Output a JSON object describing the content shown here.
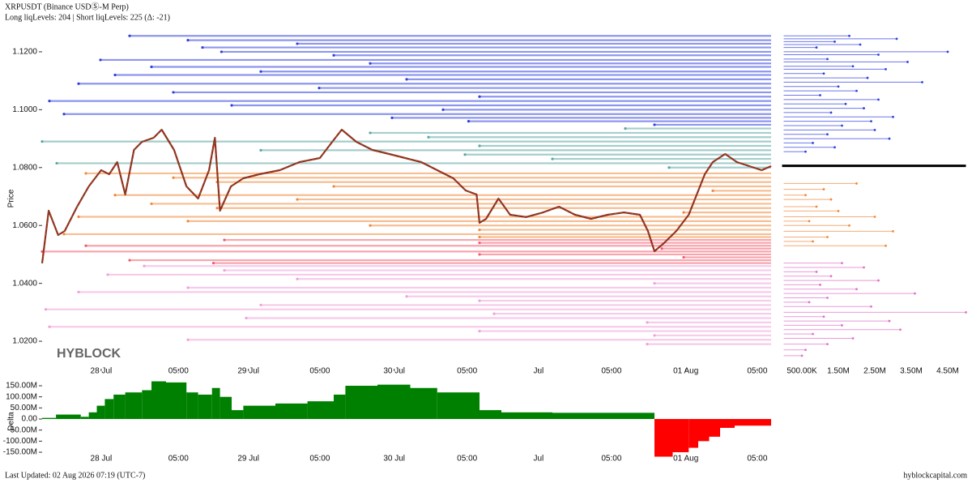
{
  "header": {
    "title": "XRPUSDT (Binance USDⓈ-M Perp)",
    "subtitle": "Long liqLevels: 204 | Short liqLevels: 225 (Δ: -21)"
  },
  "watermark": "HYBLOCK",
  "footer": {
    "updated": "Last Updated: 02 Aug 2026 07:19 (UTC-7)",
    "site": "hyblockcapital.com"
  },
  "chart_data": [
    {
      "type": "line",
      "y_label": "Price",
      "xlim": [
        0,
        100
      ],
      "ylim": [
        1.0105,
        1.1295
      ],
      "xticks": [
        {
          "value": 8.1,
          "label": "28 Jul"
        },
        {
          "value": 18.7,
          "label": "05:00"
        },
        {
          "value": 28.3,
          "label": "29 Jul"
        },
        {
          "value": 38.1,
          "label": "05:00"
        },
        {
          "value": 48.3,
          "label": "30 Jul"
        },
        {
          "value": 58.3,
          "label": "05:00"
        },
        {
          "value": 68.1,
          "label": "Jul"
        },
        {
          "value": 78.1,
          "label": "05:00"
        },
        {
          "value": 88.3,
          "label": "01 Aug"
        },
        {
          "value": 98.1,
          "label": "05:00"
        }
      ],
      "yticks": [
        {
          "value": 1.02,
          "label": "1.0200"
        },
        {
          "value": 1.04,
          "label": "1.0400"
        },
        {
          "value": 1.06,
          "label": "1.0600"
        },
        {
          "value": 1.08,
          "label": "1.0800"
        },
        {
          "value": 1.1,
          "label": "1.1000"
        },
        {
          "value": 1.12,
          "label": "1.1200"
        }
      ],
      "x": [
        0,
        0.9,
        2.2,
        3.1,
        4.8,
        6.4,
        8.1,
        9.2,
        10.3,
        11.4,
        12.6,
        13.7,
        15.3,
        16.4,
        18.1,
        19.8,
        21.4,
        22.9,
        23.7,
        24.4,
        25.9,
        27.6,
        29.8,
        32.6,
        35.3,
        38.1,
        39.8,
        41.1,
        43.1,
        45.3,
        47.6,
        49.8,
        52,
        54.2,
        56.4,
        58.1,
        59.6,
        60,
        60.9,
        62.6,
        64.2,
        66.4,
        68.7,
        70.9,
        73.1,
        75.3,
        77.6,
        79.8,
        82,
        83.1,
        84,
        85.3,
        87,
        88.7,
        89.8,
        90.9,
        92,
        93.7,
        95.3,
        97,
        98.7,
        100
      ],
      "series": [
        {
          "color": "#a0281e",
          "values": [
            1.0469,
            1.0651,
            1.0567,
            1.0581,
            1.0665,
            1.0735,
            1.0791,
            1.0777,
            1.0819,
            1.0707,
            1.0861,
            1.0889,
            1.0903,
            1.0931,
            1.0861,
            1.0735,
            1.0693,
            1.0791,
            1.0903,
            1.0651,
            1.0735,
            1.0763,
            1.0777,
            1.0791,
            1.0819,
            1.0833,
            1.0889,
            1.0931,
            1.0889,
            1.0861,
            1.0847,
            1.0833,
            1.0819,
            1.0791,
            1.0763,
            1.0721,
            1.0707,
            1.0609,
            1.0623,
            1.0693,
            1.0637,
            1.0629,
            1.0645,
            1.0665,
            1.0637,
            1.0623,
            1.0637,
            1.0645,
            1.0637,
            1.0581,
            1.0511,
            1.0539,
            1.0581,
            1.0637,
            1.0707,
            1.0777,
            1.0819,
            1.0847,
            1.0819,
            1.0805,
            1.0791,
            1.0805
          ]
        }
      ],
      "levels": [
        {
          "color": "#2f3fe0",
          "price": [
            1.1255,
            1.124,
            1.1228,
            1.1215,
            1.12,
            1.1188,
            1.1172,
            1.116,
            1.1148,
            1.1132,
            1.112,
            1.1105,
            1.109,
            1.1075,
            1.106,
            1.1045,
            1.103,
            1.1015,
            1.1,
            1.0985,
            1.0972,
            1.096,
            1.0948
          ],
          "start": [
            12,
            20,
            35,
            22,
            24.6,
            40,
            8,
            45,
            15,
            30,
            10,
            50,
            5,
            38,
            18,
            60,
            1,
            26,
            55,
            3,
            48,
            58.5,
            84
          ]
        },
        {
          "color": "#5aa6a0",
          "price": [
            1.0935,
            1.092,
            1.0905,
            1.089,
            1.0875,
            1.086,
            1.0845,
            1.083,
            1.0815,
            1.08
          ],
          "start": [
            80,
            45,
            53,
            0,
            60,
            30,
            58,
            70,
            2,
            86
          ]
        },
        {
          "color": "#f0883a",
          "price": [
            1.078,
            1.0765,
            1.075,
            1.0735,
            1.072,
            1.0705,
            1.069,
            1.0675,
            1.066,
            1.0645,
            1.063,
            1.0615,
            1.06,
            1.0585,
            1.057,
            1.056
          ],
          "start": [
            6,
            18,
            24,
            40,
            92,
            10,
            35,
            15,
            24,
            88,
            5,
            20,
            45,
            60,
            3,
            60
          ]
        },
        {
          "color": "#f45a6a",
          "price": [
            1.055,
            1.054,
            1.053,
            1.052,
            1.051,
            1.05,
            1.049,
            1.048,
            1.047
          ],
          "start": [
            25,
            60,
            6,
            85,
            0,
            60,
            88,
            12,
            23.5
          ]
        },
        {
          "color": "#f0a0d8",
          "price": [
            1.046,
            1.0445,
            1.043,
            1.0415,
            1.04,
            1.0385,
            1.037,
            1.0355,
            1.034,
            1.0325,
            1.031,
            1.0295,
            1.028,
            1.0265,
            1.025,
            1.0235,
            1.022,
            1.0205,
            1.019
          ],
          "start": [
            14,
            25,
            9,
            35,
            84,
            20,
            5,
            50,
            60,
            30,
            0.5,
            62,
            28,
            83,
            1,
            60,
            84,
            20,
            83
          ]
        }
      ]
    },
    {
      "type": "area",
      "y_label": "Delta",
      "xlim": [
        0,
        100
      ],
      "ylim": [
        -212000000,
        172000000
      ],
      "xticks": [
        {
          "value": 8.1,
          "label": "28 Jul"
        },
        {
          "value": 18.7,
          "label": "05:00"
        },
        {
          "value": 28.3,
          "label": "29 Jul"
        },
        {
          "value": 38.1,
          "label": "05:00"
        },
        {
          "value": 48.3,
          "label": "30 Jul"
        },
        {
          "value": 58.3,
          "label": "05:00"
        },
        {
          "value": 68.1,
          "label": "Jul"
        },
        {
          "value": 78.1,
          "label": "05:00"
        },
        {
          "value": 88.3,
          "label": "01 Aug"
        },
        {
          "value": 98.1,
          "label": "05:00"
        }
      ],
      "yticks": [
        {
          "value": 150000000,
          "label": "150.00M"
        },
        {
          "value": 100000000,
          "label": "100.00M"
        },
        {
          "value": 50000000,
          "label": "50.00M"
        },
        {
          "value": 0,
          "label": "0.00"
        },
        {
          "value": -50000000,
          "label": "-50.00M"
        },
        {
          "value": -100000000,
          "label": "-100.00M"
        },
        {
          "value": -150000000,
          "label": "-150.00M"
        }
      ],
      "color": "#008000",
      "negative_color": "#ff0000",
      "x": [
        0,
        1.9,
        5.3,
        6.4,
        7.5,
        8.6,
        9.8,
        11.4,
        13.7,
        15,
        17,
        19.8,
        21.4,
        23.3,
        24.4,
        26,
        27.6,
        32,
        36.4,
        40,
        41.6,
        46,
        50.5,
        54.2,
        60,
        63,
        70,
        84,
        86.5,
        88.7,
        90,
        91.5,
        93,
        95
      ],
      "values": [
        5000000,
        20000000,
        10000000,
        30000000,
        60000000,
        90000000,
        110000000,
        120000000,
        130000000,
        170000000,
        165000000,
        120000000,
        110000000,
        140000000,
        100000000,
        40000000,
        60000000,
        70000000,
        80000000,
        110000000,
        150000000,
        155000000,
        140000000,
        120000000,
        40000000,
        30000000,
        28000000,
        -170000000,
        -150000000,
        -130000000,
        -100000000,
        -80000000,
        -40000000,
        -30000000
      ]
    },
    {
      "type": "hbar",
      "xlim": [
        0,
        5000000
      ],
      "ylim": [
        1.0105,
        1.1295
      ],
      "current_price": 1.0806,
      "xticks": [
        {
          "value": 500000,
          "label": "500.00K"
        },
        {
          "value": 1500000,
          "label": "1.50M"
        },
        {
          "value": 2500000,
          "label": "2.50M"
        },
        {
          "value": 3500000,
          "label": "3.50M"
        },
        {
          "value": 4500000,
          "label": "4.50M"
        }
      ],
      "series": [
        {
          "color": "#2f3fe0",
          "prices": [
            1.1255,
            1.1245,
            1.1235,
            1.1225,
            1.1215,
            1.12,
            1.119,
            1.1175,
            1.1165,
            1.115,
            1.114,
            1.1125,
            1.111,
            1.1095,
            1.108,
            1.1065,
            1.105,
            1.1035,
            1.102,
            1.1005,
            1.099,
            1.0975,
            1.096,
            1.0945,
            1.093,
            1.0915,
            1.09,
            1.0885,
            1.087,
            1.0855
          ],
          "values": [
            1800000,
            3100000,
            1400000,
            2100000,
            900000,
            4500000,
            2600000,
            1200000,
            3400000,
            1900000,
            2800000,
            1100000,
            2300000,
            3800000,
            1500000,
            2000000,
            1000000,
            2600000,
            1700000,
            2200000,
            1300000,
            3000000,
            2400000,
            1600000,
            2500000,
            1200000,
            2900000,
            800000,
            1400000,
            600000
          ]
        },
        {
          "color": "#f0883a",
          "prices": [
            1.0745,
            1.0725,
            1.0705,
            1.069,
            1.0665,
            1.065,
            1.063,
            1.0615,
            1.06,
            1.058,
            1.056,
            1.0545,
            1.053
          ],
          "values": [
            2000000,
            1100000,
            600000,
            1300000,
            900000,
            1500000,
            2500000,
            700000,
            1800000,
            3000000,
            1200000,
            800000,
            2800000
          ]
        },
        {
          "color": "#e070c8",
          "prices": [
            1.047,
            1.0455,
            1.044,
            1.0425,
            1.041,
            1.0395,
            1.038,
            1.0365,
            1.035,
            1.0335,
            1.032,
            1.03,
            1.0285,
            1.027,
            1.0255,
            1.024,
            1.0225,
            1.021,
            1.019,
            1.017,
            1.015
          ],
          "values": [
            1600000,
            2200000,
            900000,
            1300000,
            2600000,
            1000000,
            2000000,
            3600000,
            1200000,
            700000,
            2400000,
            5000000,
            1100000,
            2900000,
            1600000,
            3200000,
            800000,
            1900000,
            1200000,
            600000,
            500000
          ]
        }
      ]
    }
  ]
}
